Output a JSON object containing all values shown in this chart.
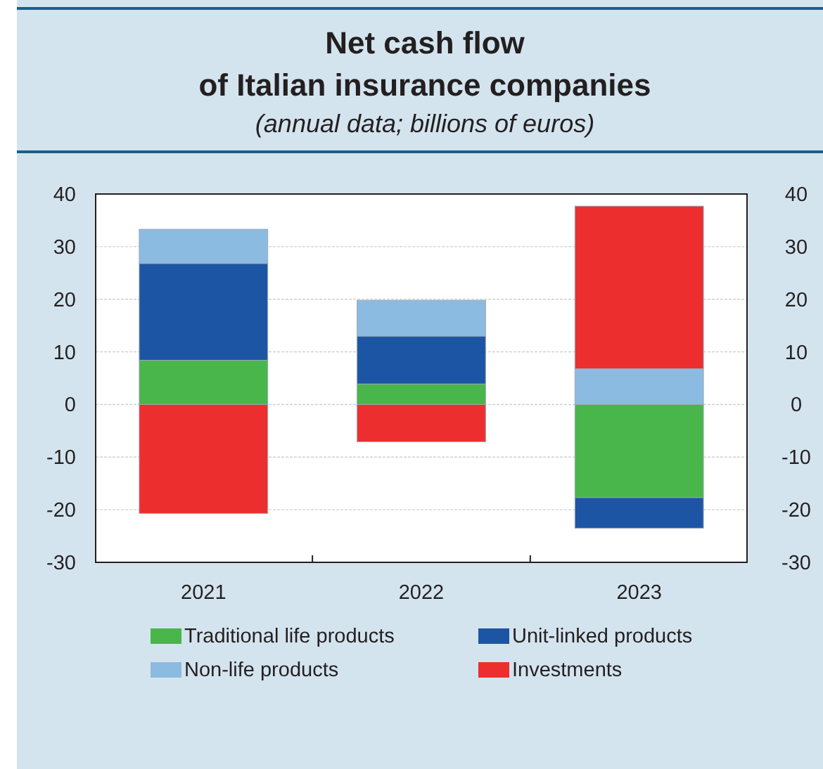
{
  "chart_data": {
    "type": "bar",
    "title": "Net cash flow\nof Italian insurance companies",
    "subtitle": "(annual data; billions of euros)",
    "categories": [
      "2021",
      "2022",
      "2023"
    ],
    "series": [
      {
        "name": "Traditional life products",
        "color": "#48b64a",
        "values": [
          8.4,
          3.9,
          -17.7
        ]
      },
      {
        "name": "Unit-linked products",
        "color": "#1d55a5",
        "values": [
          18.4,
          9.1,
          -5.8
        ]
      },
      {
        "name": "Non-life products",
        "color": "#8bbbe1",
        "values": [
          6.5,
          6.8,
          6.8
        ]
      },
      {
        "name": "Investments",
        "color": "#ed2e2e",
        "values": [
          -20.7,
          -7.1,
          30.9
        ]
      }
    ],
    "stacked": true,
    "ylim": [
      -30,
      40
    ],
    "yticks": [
      -30,
      -20,
      -10,
      0,
      10,
      20,
      30,
      40
    ],
    "y2lim": [
      -30,
      40
    ],
    "y2ticks": [
      -30,
      -20,
      -10,
      0,
      10,
      20,
      30,
      40
    ],
    "grid": "y",
    "legend": "bottom"
  }
}
